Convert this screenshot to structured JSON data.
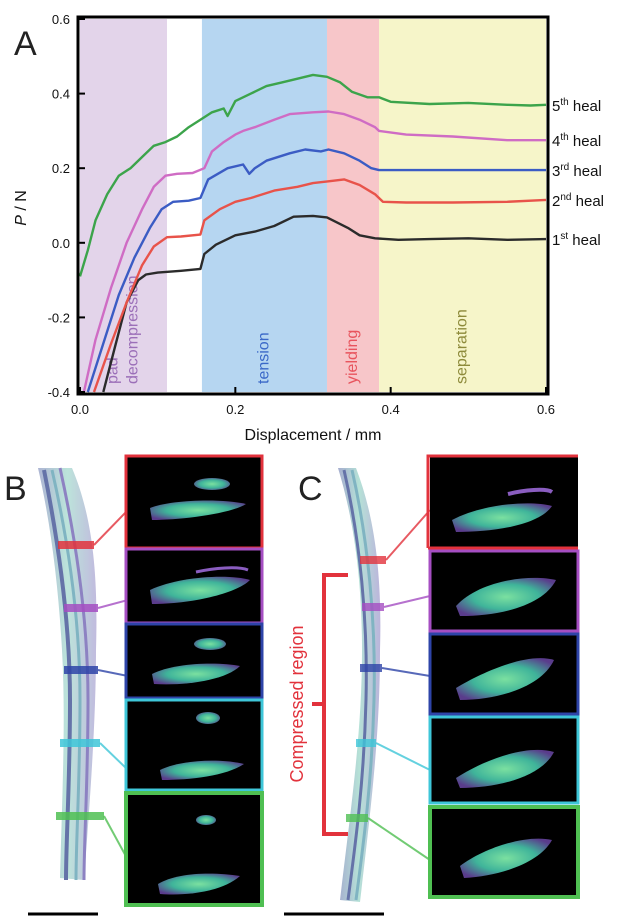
{
  "panels": {
    "a": "A",
    "b": "B",
    "c": "C"
  },
  "chart_data": {
    "type": "line",
    "xlabel": "Displacement / mm",
    "ylabel_italic": "P",
    "ylabel_rest": " / N",
    "xlim": [
      0.0,
      0.6
    ],
    "ylim": [
      -0.4,
      0.6
    ],
    "xticks": [
      0.0,
      0.2,
      0.4,
      0.6
    ],
    "xtick_labels": [
      "0.0",
      "0.2",
      "0.4",
      "0.6"
    ],
    "yticks": [
      -0.4,
      -0.2,
      0.0,
      0.2,
      0.4,
      0.6
    ],
    "ytick_labels": [
      "-0.4",
      "-0.2",
      "0.0",
      "0.2",
      "0.4",
      "0.6"
    ],
    "regions": [
      {
        "label_lines": [
          "pad",
          "decompression"
        ],
        "x0": 0.0,
        "x1": 0.112,
        "color": "#e3d4ea",
        "text_color": "#9b6fb8"
      },
      {
        "label_lines": [
          "tension"
        ],
        "x0": 0.157,
        "x1": 0.318,
        "color": "#b6d6f1",
        "text_color": "#3a68c8"
      },
      {
        "label_lines": [
          "yielding"
        ],
        "x0": 0.318,
        "x1": 0.385,
        "color": "#f7c6c9",
        "text_color": "#e8545d"
      },
      {
        "label_lines": [
          "separation"
        ],
        "x0": 0.385,
        "x1": 0.6,
        "color": "#f6f5c9",
        "text_color": "#8d8a3a"
      }
    ],
    "series": [
      {
        "ordinal": "1",
        "suffix": "st heal",
        "color": "#2b2b2b",
        "points": [
          [
            0.03,
            -0.4
          ],
          [
            0.045,
            -0.28
          ],
          [
            0.06,
            -0.16
          ],
          [
            0.075,
            -0.1
          ],
          [
            0.085,
            -0.085
          ],
          [
            0.1,
            -0.08
          ],
          [
            0.13,
            -0.075
          ],
          [
            0.155,
            -0.07
          ],
          [
            0.16,
            -0.03
          ],
          [
            0.175,
            -0.005
          ],
          [
            0.2,
            0.02
          ],
          [
            0.225,
            0.03
          ],
          [
            0.25,
            0.045
          ],
          [
            0.275,
            0.07
          ],
          [
            0.3,
            0.072
          ],
          [
            0.318,
            0.068
          ],
          [
            0.345,
            0.04
          ],
          [
            0.36,
            0.02
          ],
          [
            0.38,
            0.012
          ],
          [
            0.41,
            0.008
          ],
          [
            0.45,
            0.01
          ],
          [
            0.5,
            0.012
          ],
          [
            0.55,
            0.008
          ],
          [
            0.6,
            0.01
          ]
        ]
      },
      {
        "ordinal": "2",
        "suffix": "nd heal",
        "color": "#e8534a",
        "points": [
          [
            0.018,
            -0.4
          ],
          [
            0.04,
            -0.27
          ],
          [
            0.06,
            -0.16
          ],
          [
            0.08,
            -0.06
          ],
          [
            0.095,
            -0.01
          ],
          [
            0.112,
            0.015
          ],
          [
            0.13,
            0.017
          ],
          [
            0.155,
            0.022
          ],
          [
            0.16,
            0.06
          ],
          [
            0.18,
            0.09
          ],
          [
            0.2,
            0.11
          ],
          [
            0.22,
            0.12
          ],
          [
            0.25,
            0.14
          ],
          [
            0.28,
            0.15
          ],
          [
            0.3,
            0.16
          ],
          [
            0.32,
            0.165
          ],
          [
            0.34,
            0.17
          ],
          [
            0.36,
            0.155
          ],
          [
            0.38,
            0.13
          ],
          [
            0.39,
            0.11
          ],
          [
            0.42,
            0.108
          ],
          [
            0.48,
            0.108
          ],
          [
            0.55,
            0.11
          ],
          [
            0.6,
            0.115
          ]
        ]
      },
      {
        "ordinal": "3",
        "suffix": "rd heal",
        "color": "#3b5cc4",
        "points": [
          [
            0.01,
            -0.4
          ],
          [
            0.03,
            -0.27
          ],
          [
            0.05,
            -0.14
          ],
          [
            0.07,
            -0.04
          ],
          [
            0.09,
            0.04
          ],
          [
            0.105,
            0.09
          ],
          [
            0.12,
            0.11
          ],
          [
            0.14,
            0.113
          ],
          [
            0.155,
            0.12
          ],
          [
            0.165,
            0.17
          ],
          [
            0.19,
            0.2
          ],
          [
            0.21,
            0.21
          ],
          [
            0.218,
            0.185
          ],
          [
            0.225,
            0.2
          ],
          [
            0.24,
            0.22
          ],
          [
            0.27,
            0.24
          ],
          [
            0.29,
            0.25
          ],
          [
            0.31,
            0.245
          ],
          [
            0.32,
            0.25
          ],
          [
            0.34,
            0.24
          ],
          [
            0.36,
            0.22
          ],
          [
            0.375,
            0.2
          ],
          [
            0.385,
            0.195
          ],
          [
            0.42,
            0.195
          ],
          [
            0.5,
            0.195
          ],
          [
            0.6,
            0.195
          ]
        ]
      },
      {
        "ordinal": "4",
        "suffix": "th heal",
        "color": "#cf6cc4",
        "points": [
          [
            0.005,
            -0.4
          ],
          [
            0.02,
            -0.26
          ],
          [
            0.04,
            -0.12
          ],
          [
            0.06,
            0.0
          ],
          [
            0.08,
            0.09
          ],
          [
            0.095,
            0.15
          ],
          [
            0.11,
            0.18
          ],
          [
            0.125,
            0.185
          ],
          [
            0.145,
            0.187
          ],
          [
            0.16,
            0.2
          ],
          [
            0.17,
            0.245
          ],
          [
            0.185,
            0.27
          ],
          [
            0.2,
            0.29
          ],
          [
            0.21,
            0.3
          ],
          [
            0.225,
            0.31
          ],
          [
            0.25,
            0.33
          ],
          [
            0.27,
            0.345
          ],
          [
            0.3,
            0.35
          ],
          [
            0.32,
            0.352
          ],
          [
            0.34,
            0.345
          ],
          [
            0.36,
            0.33
          ],
          [
            0.38,
            0.31
          ],
          [
            0.385,
            0.3
          ],
          [
            0.42,
            0.29
          ],
          [
            0.48,
            0.285
          ],
          [
            0.55,
            0.275
          ],
          [
            0.6,
            0.275
          ]
        ]
      },
      {
        "ordinal": "5",
        "suffix": "th heal",
        "color": "#3ca44b",
        "points": [
          [
            0.0,
            -0.09
          ],
          [
            0.01,
            -0.02
          ],
          [
            0.02,
            0.06
          ],
          [
            0.035,
            0.13
          ],
          [
            0.05,
            0.18
          ],
          [
            0.065,
            0.2
          ],
          [
            0.08,
            0.23
          ],
          [
            0.095,
            0.26
          ],
          [
            0.11,
            0.27
          ],
          [
            0.125,
            0.285
          ],
          [
            0.14,
            0.31
          ],
          [
            0.155,
            0.33
          ],
          [
            0.17,
            0.35
          ],
          [
            0.185,
            0.36
          ],
          [
            0.19,
            0.34
          ],
          [
            0.2,
            0.38
          ],
          [
            0.22,
            0.4
          ],
          [
            0.24,
            0.42
          ],
          [
            0.26,
            0.43
          ],
          [
            0.28,
            0.44
          ],
          [
            0.3,
            0.45
          ],
          [
            0.318,
            0.445
          ],
          [
            0.335,
            0.43
          ],
          [
            0.35,
            0.405
          ],
          [
            0.37,
            0.39
          ],
          [
            0.385,
            0.39
          ],
          [
            0.4,
            0.378
          ],
          [
            0.45,
            0.372
          ],
          [
            0.5,
            0.375
          ],
          [
            0.55,
            0.37
          ],
          [
            0.58,
            0.368
          ],
          [
            0.6,
            0.37
          ]
        ]
      }
    ]
  },
  "panel_c_bracket_label": "Compressed region"
}
